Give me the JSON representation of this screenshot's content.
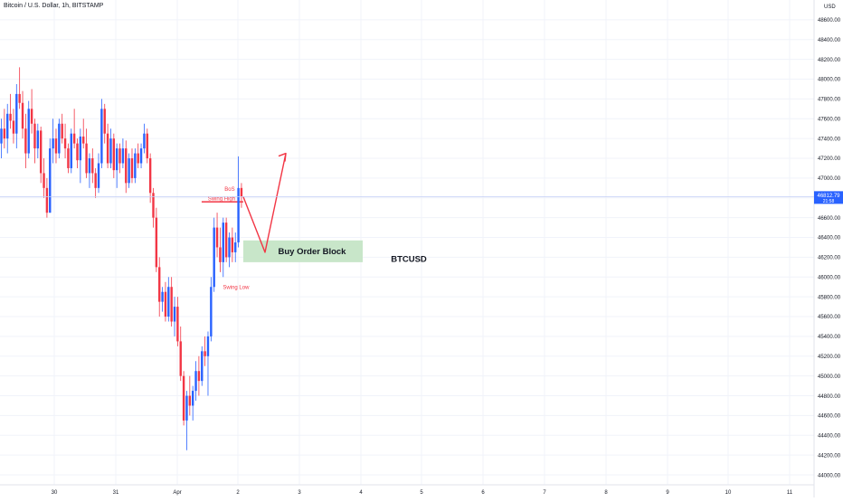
{
  "header": {
    "symbol_title": "Bitcoin / U.S. Dollar, 1h, BITSTAMP",
    "currency": "USD"
  },
  "colors": {
    "up": "#2962FF",
    "down": "#F23645",
    "grid": "#F0F3FA",
    "last_price_label": "#2962FF",
    "order_block_fill": "#C8E6C9",
    "annotation": "#F23645"
  },
  "chart_data": {
    "type": "candlestick",
    "ylim": [
      43900,
      48800
    ],
    "y_ticks": [
      "44000.00",
      "44200.00",
      "44400.00",
      "44600.00",
      "44800.00",
      "45000.00",
      "45200.00",
      "45400.00",
      "45600.00",
      "45800.00",
      "46000.00",
      "46200.00",
      "46400.00",
      "46600.00",
      "46800.00",
      "47000.00",
      "47200.00",
      "47400.00",
      "47600.00",
      "47800.00",
      "48000.00",
      "48200.00",
      "48400.00",
      "48600.00"
    ],
    "x_ticks": [
      "30",
      "31",
      "Apr",
      "2",
      "3",
      "4",
      "5",
      "6",
      "7",
      "8",
      "9",
      "10",
      "11"
    ],
    "last_price": {
      "value": 46812.79,
      "label": "46812.79",
      "countdown": "21:58"
    },
    "candles": [
      {
        "o": 47350,
        "h": 47600,
        "l": 47200,
        "c": 47500
      },
      {
        "o": 47500,
        "h": 47700,
        "l": 47300,
        "c": 47400
      },
      {
        "o": 47400,
        "h": 47750,
        "l": 47250,
        "c": 47650
      },
      {
        "o": 47650,
        "h": 47850,
        "l": 47500,
        "c": 47580
      },
      {
        "o": 47580,
        "h": 47700,
        "l": 47350,
        "c": 47450
      },
      {
        "o": 47450,
        "h": 47950,
        "l": 47300,
        "c": 47850
      },
      {
        "o": 47850,
        "h": 48120,
        "l": 47700,
        "c": 47760
      },
      {
        "o": 47760,
        "h": 47880,
        "l": 47400,
        "c": 47500
      },
      {
        "o": 47500,
        "h": 47650,
        "l": 47100,
        "c": 47250
      },
      {
        "o": 47250,
        "h": 47780,
        "l": 47200,
        "c": 47700
      },
      {
        "o": 47700,
        "h": 47900,
        "l": 47450,
        "c": 47550
      },
      {
        "o": 47550,
        "h": 47600,
        "l": 47150,
        "c": 47300
      },
      {
        "o": 47300,
        "h": 47550,
        "l": 47200,
        "c": 47480
      },
      {
        "o": 47480,
        "h": 47520,
        "l": 46950,
        "c": 47050
      },
      {
        "o": 47050,
        "h": 47200,
        "l": 46800,
        "c": 46900
      },
      {
        "o": 46900,
        "h": 47000,
        "l": 46600,
        "c": 46650
      },
      {
        "o": 46650,
        "h": 47400,
        "l": 46650,
        "c": 47300
      },
      {
        "o": 47300,
        "h": 47600,
        "l": 47150,
        "c": 47400
      },
      {
        "o": 47400,
        "h": 47500,
        "l": 47150,
        "c": 47250
      },
      {
        "o": 47250,
        "h": 47600,
        "l": 47200,
        "c": 47550
      },
      {
        "o": 47550,
        "h": 47650,
        "l": 47350,
        "c": 47400
      },
      {
        "o": 47400,
        "h": 47550,
        "l": 47200,
        "c": 47300
      },
      {
        "o": 47300,
        "h": 47350,
        "l": 47050,
        "c": 47100
      },
      {
        "o": 47100,
        "h": 47500,
        "l": 47050,
        "c": 47450
      },
      {
        "o": 47450,
        "h": 47700,
        "l": 47300,
        "c": 47350
      },
      {
        "o": 47350,
        "h": 47400,
        "l": 47100,
        "c": 47180
      },
      {
        "o": 47180,
        "h": 47500,
        "l": 46950,
        "c": 47420
      },
      {
        "o": 47420,
        "h": 47600,
        "l": 47300,
        "c": 47350
      },
      {
        "o": 47350,
        "h": 47500,
        "l": 47000,
        "c": 47050
      },
      {
        "o": 47050,
        "h": 47250,
        "l": 46900,
        "c": 47200
      },
      {
        "o": 47200,
        "h": 47300,
        "l": 46950,
        "c": 47050
      },
      {
        "o": 47050,
        "h": 47100,
        "l": 46800,
        "c": 46900
      },
      {
        "o": 46900,
        "h": 47250,
        "l": 46850,
        "c": 47150
      },
      {
        "o": 47150,
        "h": 47800,
        "l": 47100,
        "c": 47700
      },
      {
        "o": 47700,
        "h": 47750,
        "l": 47350,
        "c": 47450
      },
      {
        "o": 47450,
        "h": 47550,
        "l": 47100,
        "c": 47150
      },
      {
        "o": 47150,
        "h": 47500,
        "l": 47100,
        "c": 47400
      },
      {
        "o": 47400,
        "h": 47450,
        "l": 47000,
        "c": 47080
      },
      {
        "o": 47080,
        "h": 47350,
        "l": 46900,
        "c": 47300
      },
      {
        "o": 47300,
        "h": 47350,
        "l": 47050,
        "c": 47150
      },
      {
        "o": 47150,
        "h": 47400,
        "l": 47100,
        "c": 47300
      },
      {
        "o": 47300,
        "h": 47380,
        "l": 46850,
        "c": 46950
      },
      {
        "o": 46950,
        "h": 47250,
        "l": 46900,
        "c": 47200
      },
      {
        "o": 47200,
        "h": 47300,
        "l": 46950,
        "c": 47000
      },
      {
        "o": 47000,
        "h": 47300,
        "l": 46950,
        "c": 47250
      },
      {
        "o": 47250,
        "h": 47350,
        "l": 47100,
        "c": 47150
      },
      {
        "o": 47150,
        "h": 47350,
        "l": 47100,
        "c": 47300
      },
      {
        "o": 47300,
        "h": 47550,
        "l": 47250,
        "c": 47450
      },
      {
        "o": 47450,
        "h": 47500,
        "l": 47150,
        "c": 47200
      },
      {
        "o": 47200,
        "h": 47250,
        "l": 46750,
        "c": 46850
      },
      {
        "o": 46850,
        "h": 46900,
        "l": 46500,
        "c": 46600
      },
      {
        "o": 46600,
        "h": 46700,
        "l": 46050,
        "c": 46100
      },
      {
        "o": 46100,
        "h": 46200,
        "l": 45600,
        "c": 45750
      },
      {
        "o": 45750,
        "h": 45900,
        "l": 45650,
        "c": 45850
      },
      {
        "o": 45850,
        "h": 45950,
        "l": 45550,
        "c": 45600
      },
      {
        "o": 45600,
        "h": 46000,
        "l": 45550,
        "c": 45900
      },
      {
        "o": 45900,
        "h": 46000,
        "l": 45500,
        "c": 45550
      },
      {
        "o": 45550,
        "h": 45800,
        "l": 45400,
        "c": 45700
      },
      {
        "o": 45700,
        "h": 45800,
        "l": 45300,
        "c": 45350
      },
      {
        "o": 45350,
        "h": 45500,
        "l": 44950,
        "c": 45000
      },
      {
        "o": 45000,
        "h": 45050,
        "l": 44500,
        "c": 44550
      },
      {
        "o": 44550,
        "h": 44850,
        "l": 44250,
        "c": 44800
      },
      {
        "o": 44800,
        "h": 45000,
        "l": 44600,
        "c": 44700
      },
      {
        "o": 44700,
        "h": 44900,
        "l": 44550,
        "c": 44850
      },
      {
        "o": 44850,
        "h": 45150,
        "l": 44750,
        "c": 45050
      },
      {
        "o": 45050,
        "h": 45200,
        "l": 44800,
        "c": 44950
      },
      {
        "o": 44950,
        "h": 45300,
        "l": 44900,
        "c": 45250
      },
      {
        "o": 45250,
        "h": 45400,
        "l": 45100,
        "c": 45200
      },
      {
        "o": 45200,
        "h": 45450,
        "l": 44800,
        "c": 45400
      },
      {
        "o": 45400,
        "h": 46000,
        "l": 45350,
        "c": 45900
      },
      {
        "o": 45900,
        "h": 46600,
        "l": 45850,
        "c": 46500
      },
      {
        "o": 46500,
        "h": 46650,
        "l": 46200,
        "c": 46300
      },
      {
        "o": 46300,
        "h": 46500,
        "l": 46050,
        "c": 46150
      },
      {
        "o": 46150,
        "h": 46600,
        "l": 46000,
        "c": 46550
      },
      {
        "o": 46550,
        "h": 46600,
        "l": 46150,
        "c": 46200
      },
      {
        "o": 46200,
        "h": 46450,
        "l": 46100,
        "c": 46400
      },
      {
        "o": 46400,
        "h": 46500,
        "l": 46150,
        "c": 46250
      },
      {
        "o": 46250,
        "h": 46450,
        "l": 46150,
        "c": 46350
      },
      {
        "o": 46350,
        "h": 47220,
        "l": 46300,
        "c": 46900
      },
      {
        "o": 46900,
        "h": 46950,
        "l": 46700,
        "c": 46812
      }
    ],
    "order_block": {
      "label": "Buy Order Block",
      "y_top": 46370,
      "y_bottom": 46150
    },
    "annotations": {
      "bos": "BoS",
      "swing_high": "Swing High",
      "swing_low": "Swing Low",
      "ticker": "BTCUSD",
      "swing_high_level": 46760,
      "projection": [
        46812,
        46250,
        47250
      ]
    }
  }
}
